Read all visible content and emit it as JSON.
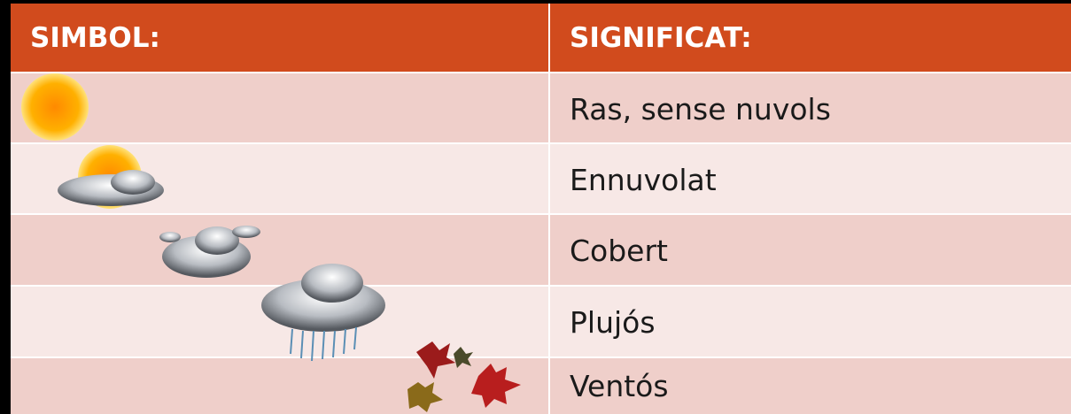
{
  "table": {
    "header": [
      "SIMBOL:",
      "SIGNIFICAT:"
    ],
    "rows": [
      "Ras, sense nuvols",
      "Ennuvolat",
      "Cobert",
      "Plujós",
      "Ventós"
    ]
  }
}
